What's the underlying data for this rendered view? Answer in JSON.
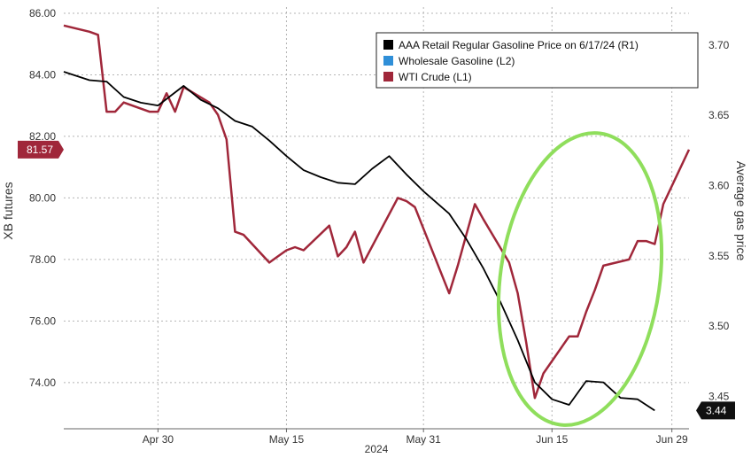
{
  "chart_data": {
    "type": "line",
    "title": "",
    "xlabel": "2024",
    "ylabel_left": "XB futures",
    "ylabel_right": "Average gas price",
    "x_ticks": [
      "Apr 30",
      "May 15",
      "May 31",
      "Jun 15",
      "Jun 29"
    ],
    "x_range": [
      "2024-04-19",
      "2024-07-01"
    ],
    "y_left": {
      "range": [
        72.5,
        86.2
      ],
      "ticks": [
        "86.00",
        "84.00",
        "82.00",
        "80.00",
        "78.00",
        "76.00",
        "74.00"
      ]
    },
    "y_right": {
      "range": [
        3.427,
        3.727
      ],
      "ticks": [
        "3.70",
        "3.65",
        "3.60",
        "3.55",
        "3.50",
        "3.45"
      ]
    },
    "grid": true,
    "legend_position": "top-right",
    "legend": [
      {
        "label": "AAA Retail Regular Gasoline Price on 6/17/24 (R1)",
        "color": "#000000"
      },
      {
        "label": "Wholesale Gasoline (L2)",
        "color": "#2f8fd8"
      },
      {
        "label": "WTI Crude (L1)",
        "color": "#a0273a"
      }
    ],
    "series": [
      {
        "name": "WTI Crude (L1)",
        "axis": "left",
        "color": "#a0273a",
        "points": [
          [
            "2024-04-19",
            85.6
          ],
          [
            "2024-04-22",
            85.4
          ],
          [
            "2024-04-23",
            85.3
          ],
          [
            "2024-04-24",
            82.8
          ],
          [
            "2024-04-25",
            82.8
          ],
          [
            "2024-04-26",
            83.1
          ],
          [
            "2024-04-29",
            82.8
          ],
          [
            "2024-04-30",
            82.8
          ],
          [
            "2024-05-01",
            83.4
          ],
          [
            "2024-05-02",
            82.8
          ],
          [
            "2024-05-03",
            83.6
          ],
          [
            "2024-05-06",
            83.1
          ],
          [
            "2024-05-07",
            82.7
          ],
          [
            "2024-05-08",
            81.9
          ],
          [
            "2024-05-09",
            78.9
          ],
          [
            "2024-05-10",
            78.8
          ],
          [
            "2024-05-13",
            77.9
          ],
          [
            "2024-05-14",
            78.1
          ],
          [
            "2024-05-15",
            78.3
          ],
          [
            "2024-05-16",
            78.4
          ],
          [
            "2024-05-17",
            78.3
          ],
          [
            "2024-05-20",
            79.1
          ],
          [
            "2024-05-21",
            78.1
          ],
          [
            "2024-05-22",
            78.4
          ],
          [
            "2024-05-23",
            78.9
          ],
          [
            "2024-05-24",
            77.9
          ],
          [
            "2024-05-28",
            80.0
          ],
          [
            "2024-05-29",
            79.9
          ],
          [
            "2024-05-30",
            79.7
          ],
          [
            "2024-05-31",
            79.0
          ],
          [
            "2024-06-03",
            76.9
          ],
          [
            "2024-06-04",
            77.8
          ],
          [
            "2024-06-05",
            78.8
          ],
          [
            "2024-06-06",
            79.8
          ],
          [
            "2024-06-07",
            79.3
          ],
          [
            "2024-06-10",
            77.9
          ],
          [
            "2024-06-11",
            76.9
          ],
          [
            "2024-06-12",
            75.3
          ],
          [
            "2024-06-13",
            73.5
          ],
          [
            "2024-06-14",
            74.3
          ],
          [
            "2024-06-17",
            75.5
          ],
          [
            "2024-06-18",
            75.5
          ],
          [
            "2024-06-19",
            76.3
          ],
          [
            "2024-06-20",
            77.0
          ],
          [
            "2024-06-21",
            77.8
          ],
          [
            "2024-06-24",
            78.0
          ],
          [
            "2024-06-25",
            78.6
          ],
          [
            "2024-06-26",
            78.6
          ],
          [
            "2024-06-27",
            78.5
          ],
          [
            "2024-06-28",
            79.8
          ],
          [
            "2024-07-01",
            81.57
          ]
        ]
      },
      {
        "name": "AAA Retail Regular Gasoline Price on 6/17/24 (R1)",
        "axis": "right",
        "color": "#000000",
        "points": [
          [
            "2024-04-19",
            3.681
          ],
          [
            "2024-04-22",
            3.675
          ],
          [
            "2024-04-24",
            3.674
          ],
          [
            "2024-04-26",
            3.663
          ],
          [
            "2024-04-28",
            3.659
          ],
          [
            "2024-04-30",
            3.657
          ],
          [
            "2024-05-03",
            3.671
          ],
          [
            "2024-05-05",
            3.661
          ],
          [
            "2024-05-07",
            3.655
          ],
          [
            "2024-05-09",
            3.646
          ],
          [
            "2024-05-11",
            3.642
          ],
          [
            "2024-05-13",
            3.632
          ],
          [
            "2024-05-15",
            3.621
          ],
          [
            "2024-05-17",
            3.611
          ],
          [
            "2024-05-19",
            3.606
          ],
          [
            "2024-05-21",
            3.602
          ],
          [
            "2024-05-23",
            3.601
          ],
          [
            "2024-05-25",
            3.612
          ],
          [
            "2024-05-27",
            3.621
          ],
          [
            "2024-05-29",
            3.608
          ],
          [
            "2024-05-31",
            3.596
          ],
          [
            "2024-06-03",
            3.58
          ],
          [
            "2024-06-05",
            3.562
          ],
          [
            "2024-06-07",
            3.541
          ],
          [
            "2024-06-09",
            3.517
          ],
          [
            "2024-06-11",
            3.49
          ],
          [
            "2024-06-13",
            3.46
          ],
          [
            "2024-06-15",
            3.448
          ],
          [
            "2024-06-17",
            3.444
          ],
          [
            "2024-06-19",
            3.461
          ],
          [
            "2024-06-21",
            3.46
          ],
          [
            "2024-06-23",
            3.449
          ],
          [
            "2024-06-25",
            3.448
          ],
          [
            "2024-06-27",
            3.44
          ]
        ]
      }
    ],
    "badges": [
      {
        "value": "81.57",
        "axis": "left",
        "color": "#a0273a"
      },
      {
        "value": "3.44",
        "axis": "right",
        "color": "#111111"
      }
    ],
    "annotation_color": "#8fde5c"
  }
}
